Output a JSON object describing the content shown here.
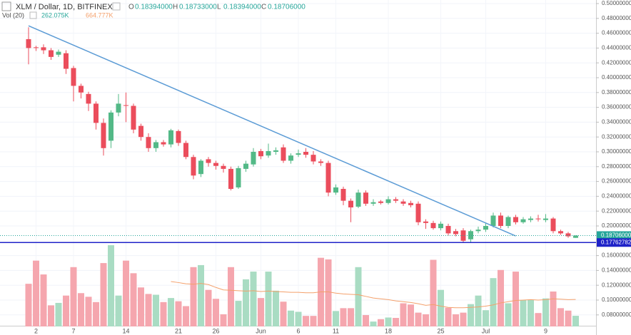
{
  "chart_data": {
    "type": "candlestick",
    "title": "XLM / Dollar, 1D, BITFINEX",
    "ohlc_legend": [
      {
        "key": "O",
        "text": "0.18394000"
      },
      {
        "key": "H",
        "text": "0.18733000"
      },
      {
        "key": "L",
        "text": "0.18394000"
      },
      {
        "key": "C",
        "text": "0.18706000"
      }
    ],
    "volume_title": "Vol (20)",
    "volume_value_label": "262.075K",
    "volume_ma_label": "664.777K",
    "categories": [
      null,
      "2",
      null,
      null,
      null,
      null,
      "7",
      null,
      null,
      null,
      null,
      null,
      null,
      "14",
      null,
      null,
      null,
      null,
      null,
      null,
      "21",
      null,
      null,
      null,
      null,
      "26",
      null,
      null,
      null,
      null,
      null,
      "Jun",
      null,
      null,
      null,
      null,
      "6",
      null,
      null,
      null,
      null,
      "11",
      null,
      null,
      null,
      null,
      null,
      null,
      "18",
      null,
      null,
      null,
      null,
      null,
      null,
      "25",
      null,
      null,
      null,
      null,
      null,
      "Jul",
      null,
      null,
      null,
      null,
      null,
      null,
      null,
      "9",
      null,
      null,
      null,
      null
    ],
    "open": [
      0.452,
      0.441,
      0.441,
      0.437,
      0.431,
      0.433,
      0.413,
      0.389,
      0.378,
      0.365,
      0.339,
      0.315,
      0.353,
      0.363,
      0.362,
      0.335,
      0.32,
      0.305,
      0.313,
      0.31,
      0.328,
      0.312,
      0.293,
      0.27,
      0.29,
      0.285,
      0.281,
      0.277,
      0.252,
      0.277,
      0.283,
      0.301,
      0.295,
      0.3,
      0.306,
      0.288,
      0.296,
      0.3,
      0.296,
      0.287,
      0.285,
      0.245,
      0.25,
      0.234,
      0.226,
      0.245,
      0.23,
      0.233,
      0.231,
      0.236,
      0.233,
      0.231,
      0.23,
      0.206,
      0.204,
      0.197,
      0.2,
      0.193,
      0.194,
      0.182,
      0.193,
      0.195,
      0.2,
      0.214,
      0.2,
      0.212,
      0.205,
      0.208,
      0.21,
      0.208,
      0.21,
      0.193,
      0.19,
      0.18394
    ],
    "high": [
      0.468,
      0.443,
      0.445,
      0.44,
      0.438,
      0.437,
      0.416,
      0.392,
      0.381,
      0.368,
      0.345,
      0.356,
      0.378,
      0.38,
      0.365,
      0.338,
      0.325,
      0.316,
      0.316,
      0.331,
      0.33,
      0.315,
      0.296,
      0.29,
      0.293,
      0.288,
      0.284,
      0.28,
      0.281,
      0.288,
      0.305,
      0.304,
      0.311,
      0.306,
      0.31,
      0.298,
      0.303,
      0.305,
      0.301,
      0.29,
      0.288,
      0.256,
      0.253,
      0.237,
      0.249,
      0.248,
      0.236,
      0.235,
      0.24,
      0.239,
      0.236,
      0.234,
      0.233,
      0.209,
      0.207,
      0.206,
      0.203,
      0.196,
      0.197,
      0.195,
      0.199,
      0.204,
      0.218,
      0.218,
      0.214,
      0.215,
      0.212,
      0.213,
      0.215,
      0.216,
      0.212,
      0.195,
      0.192,
      0.18733
    ],
    "low": [
      0.418,
      0.436,
      0.432,
      0.424,
      0.428,
      0.405,
      0.368,
      0.372,
      0.355,
      0.33,
      0.295,
      0.305,
      0.348,
      0.34,
      0.325,
      0.315,
      0.3,
      0.3,
      0.307,
      0.306,
      0.308,
      0.29,
      0.263,
      0.266,
      0.28,
      0.276,
      0.272,
      0.248,
      0.25,
      0.273,
      0.28,
      0.29,
      0.292,
      0.296,
      0.285,
      0.284,
      0.293,
      0.292,
      0.283,
      0.281,
      0.24,
      0.242,
      0.228,
      0.205,
      0.224,
      0.227,
      0.227,
      0.229,
      0.229,
      0.231,
      0.227,
      0.225,
      0.201,
      0.196,
      0.195,
      0.194,
      0.187,
      0.186,
      0.178,
      0.178,
      0.19,
      0.192,
      0.198,
      0.197,
      0.197,
      0.202,
      0.203,
      0.205,
      0.206,
      0.205,
      0.19,
      0.188,
      0.184,
      0.18394
    ],
    "close": [
      0.44,
      0.44,
      0.437,
      0.428,
      0.435,
      0.412,
      0.389,
      0.38,
      0.365,
      0.339,
      0.305,
      0.353,
      0.365,
      0.362,
      0.33,
      0.32,
      0.305,
      0.313,
      0.31,
      0.329,
      0.312,
      0.293,
      0.268,
      0.288,
      0.285,
      0.281,
      0.277,
      0.25,
      0.278,
      0.284,
      0.3,
      0.294,
      0.301,
      0.302,
      0.288,
      0.295,
      0.298,
      0.296,
      0.287,
      0.285,
      0.245,
      0.252,
      0.234,
      0.225,
      0.245,
      0.23,
      0.232,
      0.231,
      0.236,
      0.234,
      0.23,
      0.228,
      0.205,
      0.204,
      0.197,
      0.203,
      0.19,
      0.189,
      0.18,
      0.193,
      0.195,
      0.2,
      0.214,
      0.2,
      0.212,
      0.205,
      0.209,
      0.21,
      0.209,
      0.21,
      0.193,
      0.19,
      0.186,
      0.18706
    ],
    "volume": [
      1050,
      1620,
      1280,
      520,
      580,
      760,
      1460,
      820,
      730,
      600,
      1560,
      2000,
      760,
      1620,
      1310,
      960,
      800,
      780,
      600,
      700,
      620,
      500,
      1460,
      1510,
      900,
      680,
      300,
      1460,
      630,
      1160,
      1350,
      700,
      1350,
      880,
      610,
      390,
      360,
      260,
      260,
      1690,
      1650,
      380,
      450,
      450,
      1460,
      280,
      120,
      180,
      220,
      210,
      570,
      540,
      340,
      300,
      1640,
      900,
      460,
      300,
      340,
      550,
      760,
      400,
      1190,
      1390,
      570,
      1350,
      650,
      650,
      330,
      690,
      860,
      450,
      390,
      262.075
    ],
    "volume_ma": [
      null,
      null,
      null,
      null,
      null,
      null,
      null,
      null,
      null,
      null,
      null,
      null,
      null,
      null,
      null,
      null,
      null,
      null,
      null,
      1105,
      1080,
      1050,
      1040,
      1060,
      1030,
      960,
      900,
      890,
      880,
      870,
      880,
      860,
      870,
      860,
      850,
      840,
      840,
      830,
      830,
      850,
      850,
      820,
      800,
      790,
      780,
      740,
      700,
      680,
      660,
      630,
      610,
      590,
      560,
      520,
      540,
      500,
      470,
      460,
      460,
      470,
      480,
      500,
      530,
      580,
      610,
      640,
      650,
      660,
      650,
      660,
      680,
      670,
      660,
      664.777
    ],
    "ylim": [
      0.06,
      0.5
    ],
    "yticks": [
      {
        "value": 0.5,
        "label": "0.50000000"
      },
      {
        "value": 0.48,
        "label": "0.48000000"
      },
      {
        "value": 0.46,
        "label": "0.46000000"
      },
      {
        "value": 0.44,
        "label": "0.44000000"
      },
      {
        "value": 0.42,
        "label": "0.42000000"
      },
      {
        "value": 0.4,
        "label": "0.40000000"
      },
      {
        "value": 0.38,
        "label": "0.38000000"
      },
      {
        "value": 0.36,
        "label": "0.36000000"
      },
      {
        "value": 0.34,
        "label": "0.34000000"
      },
      {
        "value": 0.32,
        "label": "0.32000000"
      },
      {
        "value": 0.3,
        "label": "0.30000000"
      },
      {
        "value": 0.28,
        "label": "0.28000000"
      },
      {
        "value": 0.26,
        "label": "0.26000000"
      },
      {
        "value": 0.24,
        "label": "0.24000000"
      },
      {
        "value": 0.22,
        "label": "0.22000000"
      },
      {
        "value": 0.2,
        "label": "0.20000000"
      },
      {
        "value": 0.16,
        "label": "0.16000000"
      },
      {
        "value": 0.14,
        "label": "0.14000000"
      },
      {
        "value": 0.12,
        "label": "0.12000000"
      },
      {
        "value": 0.1,
        "label": "0.10000000"
      },
      {
        "value": 0.08,
        "label": "0.08000000"
      }
    ],
    "volume_ylim": [
      0,
      2000
    ],
    "last_price": {
      "value": 0.18706,
      "label": "0.18706000",
      "color": "#26a69a"
    },
    "horizontal_line": {
      "value": 0.17762782,
      "label": "0.17762782",
      "color": "#1e22c8"
    },
    "trendline": {
      "x": [
        0,
        65
      ],
      "y": [
        0.47,
        0.1865
      ],
      "color": "#5b9bd5"
    },
    "up_color": "#53b987",
    "down_color": "#eb4d5c",
    "up_volume_color": "#a9dcc3",
    "down_volume_color": "#f5a6ae",
    "ma_color": "#f4a06b",
    "grid": true
  }
}
